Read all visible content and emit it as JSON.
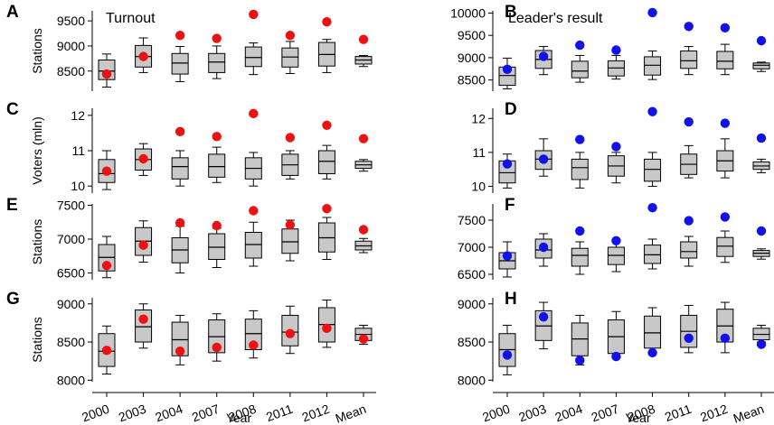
{
  "figure": {
    "x_axis_label": "Year",
    "categories": [
      "2000",
      "2003",
      "2004",
      "2007",
      "2008",
      "2011",
      "2012",
      "Mean"
    ]
  },
  "colors": {
    "red": "#ee1111",
    "blue": "#1111ee",
    "box_fill": "#c8c8c8"
  },
  "chart_data": [
    {
      "panel": "A",
      "type": "box",
      "title": "Turnout",
      "ylabel": "Stations",
      "ylim": [
        8100,
        9700
      ],
      "yticks": [
        8500,
        9000,
        9500
      ],
      "dot_color": "red",
      "categories": [
        "2000",
        "2003",
        "2004",
        "2007",
        "2008",
        "2011",
        "2012",
        "Mean"
      ],
      "boxes": [
        {
          "whislo": 8180,
          "q1": 8330,
          "med": 8500,
          "q3": 8720,
          "whishi": 8840
        },
        {
          "whislo": 8470,
          "q1": 8580,
          "med": 8790,
          "q3": 9010,
          "whishi": 9160
        },
        {
          "whislo": 8290,
          "q1": 8440,
          "med": 8660,
          "q3": 8850,
          "whishi": 8990
        },
        {
          "whislo": 8350,
          "q1": 8470,
          "med": 8680,
          "q3": 8850,
          "whishi": 9000
        },
        {
          "whislo": 8430,
          "q1": 8590,
          "med": 8770,
          "q3": 8980,
          "whishi": 9060
        },
        {
          "whislo": 8450,
          "q1": 8580,
          "med": 8780,
          "q3": 8960,
          "whishi": 9090
        },
        {
          "whislo": 8470,
          "q1": 8600,
          "med": 8830,
          "q3": 9070,
          "whishi": 9130
        },
        {
          "whislo": 8590,
          "q1": 8640,
          "med": 8720,
          "q3": 8790,
          "whishi": 8810
        }
      ],
      "dots": [
        8440,
        8790,
        9210,
        9150,
        9630,
        9210,
        9480,
        9130
      ]
    },
    {
      "panel": "B",
      "type": "box",
      "title": "Leader's result",
      "ylabel": "",
      "ylim": [
        8250,
        10050
      ],
      "yticks": [
        8500,
        9000,
        9500,
        10000
      ],
      "dot_color": "blue",
      "categories": [
        "2000",
        "2003",
        "2004",
        "2007",
        "2008",
        "2011",
        "2012",
        "Mean"
      ],
      "boxes": [
        {
          "whislo": 8300,
          "q1": 8380,
          "med": 8600,
          "q3": 8790,
          "whishi": 8990
        },
        {
          "whislo": 8620,
          "q1": 8760,
          "med": 8960,
          "q3": 9160,
          "whishi": 9250
        },
        {
          "whislo": 8450,
          "q1": 8550,
          "med": 8700,
          "q3": 8920,
          "whishi": 9050
        },
        {
          "whislo": 8520,
          "q1": 8590,
          "med": 8770,
          "q3": 8930,
          "whishi": 9050
        },
        {
          "whislo": 8510,
          "q1": 8610,
          "med": 8830,
          "q3": 9020,
          "whishi": 9150
        },
        {
          "whislo": 8620,
          "q1": 8760,
          "med": 8930,
          "q3": 9150,
          "whishi": 9250
        },
        {
          "whislo": 8620,
          "q1": 8750,
          "med": 8920,
          "q3": 9140,
          "whishi": 9300
        },
        {
          "whislo": 8690,
          "q1": 8750,
          "med": 8830,
          "q3": 8880,
          "whishi": 8900
        }
      ],
      "dots": [
        8740,
        9030,
        9280,
        9170,
        10010,
        9700,
        9670,
        9380
      ]
    },
    {
      "panel": "C",
      "type": "box",
      "title": "",
      "ylabel": "Voters (mln)",
      "ylim": [
        9.8,
        12.2
      ],
      "yticks": [
        10,
        11,
        12
      ],
      "dot_color": "red",
      "categories": [
        "2000",
        "2003",
        "2004",
        "2007",
        "2008",
        "2011",
        "2012",
        "Mean"
      ],
      "boxes": [
        {
          "whislo": 9.9,
          "q1": 10.1,
          "med": 10.35,
          "q3": 10.75,
          "whishi": 11.0
        },
        {
          "whislo": 10.3,
          "q1": 10.45,
          "med": 10.75,
          "q3": 11.05,
          "whishi": 11.2
        },
        {
          "whislo": 10.0,
          "q1": 10.2,
          "med": 10.55,
          "q3": 10.8,
          "whishi": 11.0
        },
        {
          "whislo": 10.1,
          "q1": 10.25,
          "med": 10.55,
          "q3": 10.9,
          "whishi": 11.1
        },
        {
          "whislo": 10.0,
          "q1": 10.2,
          "med": 10.5,
          "q3": 10.8,
          "whishi": 10.95
        },
        {
          "whislo": 10.2,
          "q1": 10.3,
          "med": 10.6,
          "q3": 10.9,
          "whishi": 11.0
        },
        {
          "whislo": 10.2,
          "q1": 10.35,
          "med": 10.7,
          "q3": 11.0,
          "whishi": 11.15
        },
        {
          "whislo": 10.42,
          "q1": 10.5,
          "med": 10.6,
          "q3": 10.7,
          "whishi": 10.75
        }
      ],
      "dots": [
        10.42,
        10.77,
        11.54,
        11.4,
        12.05,
        11.37,
        11.72,
        11.34
      ]
    },
    {
      "panel": "D",
      "type": "box",
      "title": "",
      "ylabel": "",
      "ylim": [
        9.8,
        12.3
      ],
      "yticks": [
        10,
        11,
        12
      ],
      "dot_color": "blue",
      "categories": [
        "2000",
        "2003",
        "2004",
        "2007",
        "2008",
        "2011",
        "2012",
        "Mean"
      ],
      "boxes": [
        {
          "whislo": 9.95,
          "q1": 10.1,
          "med": 10.4,
          "q3": 10.75,
          "whishi": 10.95
        },
        {
          "whislo": 10.3,
          "q1": 10.5,
          "med": 10.8,
          "q3": 11.05,
          "whishi": 11.4
        },
        {
          "whislo": 9.95,
          "q1": 10.2,
          "med": 10.55,
          "q3": 10.8,
          "whishi": 11.0
        },
        {
          "whislo": 10.1,
          "q1": 10.3,
          "med": 10.6,
          "q3": 10.9,
          "whishi": 11.0
        },
        {
          "whislo": 10.0,
          "q1": 10.15,
          "med": 10.5,
          "q3": 10.8,
          "whishi": 11.0
        },
        {
          "whislo": 10.25,
          "q1": 10.35,
          "med": 10.65,
          "q3": 10.95,
          "whishi": 11.2
        },
        {
          "whislo": 10.25,
          "q1": 10.45,
          "med": 10.75,
          "q3": 11.05,
          "whishi": 11.4
        },
        {
          "whislo": 10.4,
          "q1": 10.5,
          "med": 10.6,
          "q3": 10.72,
          "whishi": 10.8
        }
      ],
      "dots": [
        10.66,
        10.8,
        11.38,
        11.17,
        12.2,
        11.9,
        11.86,
        11.42
      ]
    },
    {
      "panel": "E",
      "type": "box",
      "title": "",
      "ylabel": "Stations",
      "ylim": [
        6400,
        7520
      ],
      "yticks": [
        6500,
        7000,
        7500
      ],
      "dot_color": "red",
      "categories": [
        "2000",
        "2003",
        "2004",
        "2007",
        "2008",
        "2011",
        "2012",
        "Mean"
      ],
      "boxes": [
        {
          "whislo": 6430,
          "q1": 6530,
          "med": 6730,
          "q3": 6920,
          "whishi": 7040
        },
        {
          "whislo": 6660,
          "q1": 6760,
          "med": 6970,
          "q3": 7170,
          "whishi": 7270
        },
        {
          "whislo": 6500,
          "q1": 6650,
          "med": 6840,
          "q3": 7020,
          "whishi": 7190
        },
        {
          "whislo": 6580,
          "q1": 6700,
          "med": 6880,
          "q3": 7080,
          "whishi": 7160
        },
        {
          "whislo": 6600,
          "q1": 6720,
          "med": 6920,
          "q3": 7100,
          "whishi": 7250
        },
        {
          "whislo": 6680,
          "q1": 6790,
          "med": 6960,
          "q3": 7150,
          "whishi": 7280
        },
        {
          "whislo": 6700,
          "q1": 6810,
          "med": 7020,
          "q3": 7240,
          "whishi": 7320
        },
        {
          "whislo": 6800,
          "q1": 6840,
          "med": 6900,
          "q3": 6970,
          "whishi": 7010
        }
      ],
      "dots": [
        6610,
        6910,
        7240,
        7200,
        7420,
        7210,
        7450,
        7140
      ]
    },
    {
      "panel": "F",
      "type": "box",
      "title": "",
      "ylabel": "",
      "ylim": [
        6400,
        7800
      ],
      "yticks": [
        6500,
        7000,
        7500
      ],
      "dot_color": "blue",
      "categories": [
        "2000",
        "2003",
        "2004",
        "2007",
        "2008",
        "2011",
        "2012",
        "Mean"
      ],
      "boxes": [
        {
          "whislo": 6450,
          "q1": 6600,
          "med": 6750,
          "q3": 6900,
          "whishi": 7100
        },
        {
          "whislo": 6650,
          "q1": 6800,
          "med": 6950,
          "q3": 7150,
          "whishi": 7250
        },
        {
          "whislo": 6500,
          "q1": 6650,
          "med": 6850,
          "q3": 6980,
          "whishi": 7100
        },
        {
          "whislo": 6550,
          "q1": 6680,
          "med": 6850,
          "q3": 7000,
          "whishi": 7100
        },
        {
          "whislo": 6600,
          "q1": 6700,
          "med": 6860,
          "q3": 7040,
          "whishi": 7150
        },
        {
          "whislo": 6650,
          "q1": 6800,
          "med": 6920,
          "q3": 7100,
          "whishi": 7200
        },
        {
          "whislo": 6720,
          "q1": 6830,
          "med": 7020,
          "q3": 7180,
          "whishi": 7300
        },
        {
          "whislo": 6780,
          "q1": 6830,
          "med": 6890,
          "q3": 6940,
          "whishi": 6970
        }
      ],
      "dots": [
        6840,
        7000,
        7300,
        7120,
        7730,
        7490,
        7560,
        7300
      ]
    },
    {
      "panel": "G",
      "type": "box",
      "title": "",
      "ylabel": "Stations",
      "ylim": [
        7980,
        9080
      ],
      "yticks": [
        8000,
        8500,
        9000
      ],
      "dot_color": "red",
      "categories": [
        "2000",
        "2003",
        "2004",
        "2007",
        "2008",
        "2011",
        "2012",
        "Mean"
      ],
      "boxes": [
        {
          "whislo": 8080,
          "q1": 8180,
          "med": 8380,
          "q3": 8610,
          "whishi": 8710
        },
        {
          "whislo": 8420,
          "q1": 8500,
          "med": 8700,
          "q3": 8920,
          "whishi": 9000
        },
        {
          "whislo": 8200,
          "q1": 8320,
          "med": 8530,
          "q3": 8760,
          "whishi": 8850
        },
        {
          "whislo": 8250,
          "q1": 8360,
          "med": 8570,
          "q3": 8790,
          "whishi": 8870
        },
        {
          "whislo": 8290,
          "q1": 8400,
          "med": 8610,
          "q3": 8800,
          "whishi": 8910
        },
        {
          "whislo": 8350,
          "q1": 8450,
          "med": 8630,
          "q3": 8850,
          "whishi": 8970
        },
        {
          "whislo": 8430,
          "q1": 8500,
          "med": 8730,
          "q3": 8950,
          "whishi": 9050
        },
        {
          "whislo": 8470,
          "q1": 8520,
          "med": 8600,
          "q3": 8680,
          "whishi": 8720
        }
      ],
      "dots": [
        8390,
        8800,
        8380,
        8430,
        8460,
        8610,
        8680,
        8540
      ]
    },
    {
      "panel": "H",
      "type": "box",
      "title": "",
      "ylabel": "",
      "ylim": [
        7980,
        9080
      ],
      "yticks": [
        8000,
        8500,
        9000
      ],
      "dot_color": "blue",
      "categories": [
        "2000",
        "2003",
        "2004",
        "2007",
        "2008",
        "2011",
        "2012",
        "Mean"
      ],
      "boxes": [
        {
          "whislo": 8070,
          "q1": 8180,
          "med": 8400,
          "q3": 8610,
          "whishi": 8720
        },
        {
          "whislo": 8410,
          "q1": 8520,
          "med": 8710,
          "q3": 8910,
          "whishi": 9020
        },
        {
          "whislo": 8200,
          "q1": 8320,
          "med": 8540,
          "q3": 8750,
          "whishi": 8850
        },
        {
          "whislo": 8290,
          "q1": 8350,
          "med": 8570,
          "q3": 8790,
          "whishi": 8900
        },
        {
          "whislo": 8350,
          "q1": 8420,
          "med": 8620,
          "q3": 8840,
          "whishi": 8950
        },
        {
          "whislo": 8360,
          "q1": 8430,
          "med": 8640,
          "q3": 8850,
          "whishi": 8980
        },
        {
          "whislo": 8360,
          "q1": 8500,
          "med": 8710,
          "q3": 8930,
          "whishi": 9020
        },
        {
          "whislo": 8500,
          "q1": 8530,
          "med": 8600,
          "q3": 8680,
          "whishi": 8720
        }
      ],
      "dots": [
        8330,
        8830,
        8260,
        8310,
        8360,
        8550,
        8550,
        8470
      ]
    }
  ]
}
